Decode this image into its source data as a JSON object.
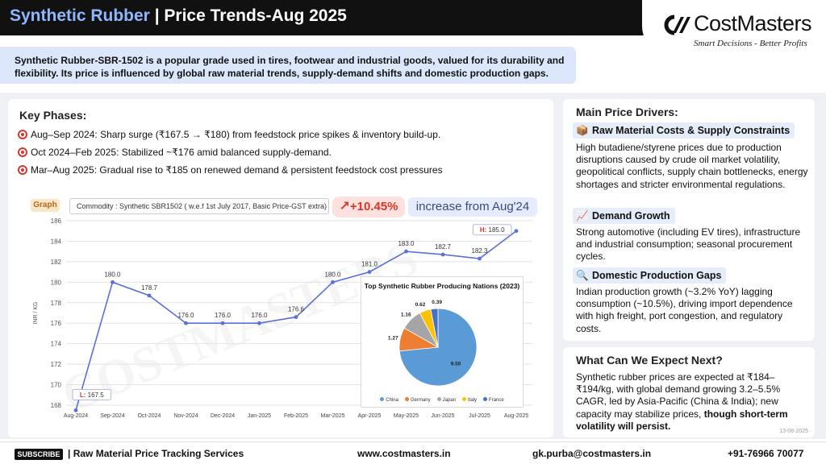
{
  "header": {
    "title_highlight": "Synthetic Rubber",
    "title_rest": " | Price Trends-Aug 2025",
    "brand": "CostMasters",
    "tagline": "Smart Decisions - Better Profits"
  },
  "intro": "Synthetic Rubber-SBR-1502 is a popular grade used in tires, footwear and industrial goods, valued for its durability and flexibility. Its price is influenced by  global raw material trends, supply-demand shifts and domestic production gaps.",
  "key_phases": {
    "title": "Key Phases:",
    "items": [
      "Aug–Sep 2024: Sharp surge (₹167.5 → ₹180) from feedstock price spikes & inventory build-up.",
      "Oct 2024–Feb 2025: Stabilized ~₹176 amid balanced supply-demand.",
      "Mar–Aug 2025: Gradual rise to ₹185 on renewed demand & persistent feedstock cost pressures"
    ]
  },
  "graph": {
    "tag": "Graph",
    "commodity": "Commodity : Synthetic SBR1502 ( w.e.f 1st July 2017, Basic Price-GST extra)",
    "change": "+10.45%",
    "change_text": "increase from Aug'24",
    "watermark": "COSTMASTERS"
  },
  "chart_data": [
    {
      "type": "line",
      "title": "",
      "xlabel": "",
      "ylabel": "INR / KG",
      "ylim": [
        168,
        186
      ],
      "yticks": [
        168,
        170,
        172,
        174,
        176,
        178,
        180,
        182,
        184,
        186
      ],
      "grid": "horizontal",
      "categories": [
        "Aug-2024",
        "Sep-2024",
        "Oct-2024",
        "Nov-2024",
        "Dec-2024",
        "Jan-2025",
        "Feb-2025",
        "Mar-2025",
        "Apr-2025",
        "May-2025",
        "Jun-2025",
        "Jul-2025",
        "Aug-2025"
      ],
      "values": [
        167.5,
        180.0,
        178.7,
        176.0,
        176.0,
        176.0,
        176.6,
        180.0,
        181.0,
        183.0,
        182.7,
        182.3,
        185.0
      ],
      "labels": [
        "L: 167.5",
        "180.0",
        "178.7",
        "176.0",
        "176.0",
        "176.0",
        "176.6",
        "180.0",
        "181.0",
        "183.0",
        "182.7",
        "182.3",
        "H: 185.0"
      ],
      "color": "#5b6fd6"
    },
    {
      "type": "pie",
      "title": "Top Synthetic Rubber Producing Nations (2023)",
      "categories": [
        "China",
        "Germany",
        "Japan",
        "Italy",
        "France"
      ],
      "values": [
        9.5,
        1.27,
        1.16,
        0.62,
        0.39
      ],
      "labels": [
        "9.50",
        "1.27",
        "1.16",
        "0.62",
        "0.39"
      ],
      "colors": [
        "#5b9bd5",
        "#ed7d31",
        "#a5a5a5",
        "#ffc000",
        "#4472c4"
      ],
      "legend": "bottom"
    }
  ],
  "drivers": {
    "title": "Main Price Drivers:",
    "items": [
      {
        "icon": "package-icon",
        "glyph": "📦",
        "heading": "Raw Material Costs & Supply Constraints",
        "body": "High butadiene/styrene prices due to production disruptions caused by crude oil market volatility, geopolitical conflicts, supply chain bottlenecks, energy shortages and stricter environmental regulations."
      },
      {
        "icon": "chart-up-icon",
        "glyph": "📈",
        "heading": "Demand Growth",
        "body": "Strong automotive (including EV tires), infrastructure and industrial consumption; seasonal procurement cycles."
      },
      {
        "icon": "magnifier-icon",
        "glyph": "🔍",
        "heading": "Domestic Production Gaps",
        "body": "Indian production growth (~3.2% YoY) lagging consumption (~10.5%), driving import dependence with high freight, port congestion, and regulatory costs."
      }
    ]
  },
  "expect": {
    "title": "What Can We Expect Next?",
    "body": "Synthetic rubber prices are expected at ₹184–₹194/kg, with global demand growing 3.2–5.5% CAGR, led by Asia-Pacific (China & India); new capacity may stabilize prices, ",
    "body_bold": "though short-term volatility will persist.",
    "date": "13-08-2025"
  },
  "footer": {
    "subscribe": "SUBSCRIBE",
    "services": "| Raw Material Price Tracking Services",
    "website": "www.costmasters.in",
    "email": "gk.purba@costmasters.in",
    "phone": "+91-76966 70077"
  }
}
